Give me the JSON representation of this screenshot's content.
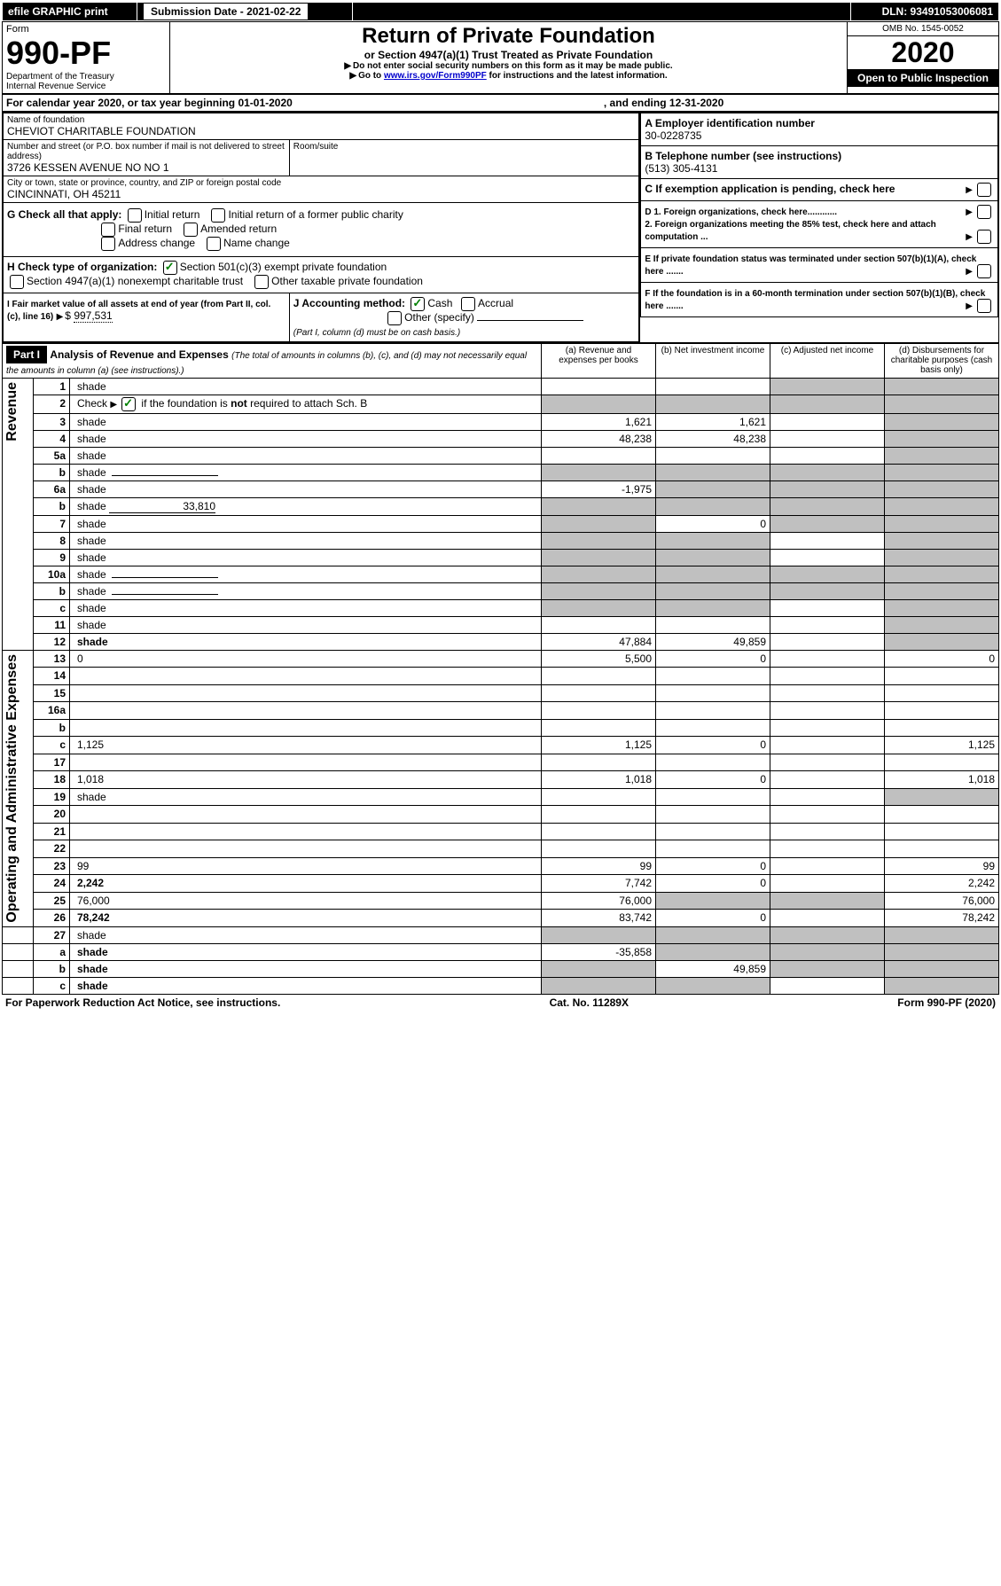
{
  "header_bar": {
    "efile": "efile GRAPHIC print",
    "submission": "Submission Date - 2021-02-22",
    "dln_label": "DLN: 93491053006081"
  },
  "form_box": {
    "form_word": "Form",
    "form_number": "990-PF",
    "dept": "Department of the Treasury",
    "irs": "Internal Revenue Service"
  },
  "title_box": {
    "main": "Return of Private Foundation",
    "sub": "or Section 4947(a)(1) Trust Treated as Private Foundation",
    "warn": "Do not enter social security numbers on this form as it may be made public.",
    "goto_prefix": "Go to ",
    "goto_link": "www.irs.gov/Form990PF",
    "goto_suffix": " for instructions and the latest information."
  },
  "right_box": {
    "omb": "OMB No. 1545-0052",
    "year": "2020",
    "open": "Open to Public Inspection"
  },
  "period": {
    "line": "For calendar year 2020, or tax year beginning 01-01-2020",
    "ending": ", and ending 12-31-2020"
  },
  "foundation": {
    "name_label": "Name of foundation",
    "name": "CHEVIOT CHARITABLE FOUNDATION",
    "addr_label": "Number and street (or P.O. box number if mail is not delivered to street address)",
    "addr": "3726 KESSEN AVENUE NO NO 1",
    "room_label": "Room/suite",
    "city_label": "City or town, state or province, country, and ZIP or foreign postal code",
    "city": "CINCINNATI, OH  45211"
  },
  "right_info": {
    "a": "A Employer identification number",
    "ein": "30-0228735",
    "b": "B Telephone number (see instructions)",
    "phone": "(513) 305-4131",
    "c": "C If exemption application is pending, check here",
    "d1": "D 1. Foreign organizations, check here............",
    "d2": "2. Foreign organizations meeting the 85% test, check here and attach computation ...",
    "e": "E  If private foundation status was terminated under section 507(b)(1)(A), check here .......",
    "f": "F  If the foundation is in a 60-month termination under section 507(b)(1)(B), check here ......."
  },
  "g": {
    "label": "G Check all that apply:",
    "o1": "Initial return",
    "o2": "Initial return of a former public charity",
    "o3": "Final return",
    "o4": "Amended return",
    "o5": "Address change",
    "o6": "Name change"
  },
  "h": {
    "label": "H Check type of organization:",
    "o1": "Section 501(c)(3) exempt private foundation",
    "o2": "Section 4947(a)(1) nonexempt charitable trust",
    "o3": "Other taxable private foundation"
  },
  "i": {
    "label": "I Fair market value of all assets at end of year (from Part II, col. (c), line 16)",
    "arrow": "$",
    "value": "997,531"
  },
  "j": {
    "label": "J Accounting method:",
    "cash": "Cash",
    "accrual": "Accrual",
    "other": "Other (specify)",
    "note": "(Part I, column (d) must be on cash basis.)"
  },
  "part1": {
    "label": "Part I",
    "title": "Analysis of Revenue and Expenses",
    "title_note": "(The total of amounts in columns (b), (c), and (d) may not necessarily equal the amounts in column (a) (see instructions).)",
    "col_a": "(a)   Revenue and expenses per books",
    "col_b": "(b)  Net investment income",
    "col_c": "(c)  Adjusted net income",
    "col_d": "(d)  Disbursements for charitable purposes (cash basis only)"
  },
  "sections": {
    "revenue": "Revenue",
    "opex": "Operating and Administrative Expenses"
  },
  "rows": [
    {
      "n": "1",
      "d": "shade",
      "a": "",
      "b": "",
      "c": "shade"
    },
    {
      "n": "2",
      "d": "shade",
      "a": "shade",
      "b": "shade",
      "c": "shade",
      "special": "checkline"
    },
    {
      "n": "3",
      "d": "shade",
      "a": "1,621",
      "b": "1,621",
      "c": ""
    },
    {
      "n": "4",
      "d": "shade",
      "a": "48,238",
      "b": "48,238",
      "c": ""
    },
    {
      "n": "5a",
      "d": "shade",
      "a": "",
      "b": "",
      "c": ""
    },
    {
      "n": "b",
      "d": "shade",
      "a": "shade",
      "b": "shade",
      "c": "shade",
      "special": "blankline"
    },
    {
      "n": "6a",
      "d": "shade",
      "a": "-1,975",
      "b": "shade",
      "c": "shade"
    },
    {
      "n": "b",
      "d": "shade",
      "a": "shade",
      "b": "shade",
      "c": "shade",
      "special": "blankval",
      "blankval": "33,810"
    },
    {
      "n": "7",
      "d": "shade",
      "a": "shade",
      "b": "0",
      "c": "shade"
    },
    {
      "n": "8",
      "d": "shade",
      "a": "shade",
      "b": "shade",
      "c": ""
    },
    {
      "n": "9",
      "d": "shade",
      "a": "shade",
      "b": "shade",
      "c": ""
    },
    {
      "n": "10a",
      "d": "shade",
      "a": "shade",
      "b": "shade",
      "c": "shade",
      "special": "blankline"
    },
    {
      "n": "b",
      "d": "shade",
      "a": "shade",
      "b": "shade",
      "c": "shade",
      "special": "blankline"
    },
    {
      "n": "c",
      "d": "shade",
      "a": "shade",
      "b": "shade",
      "c": ""
    },
    {
      "n": "11",
      "d": "shade",
      "a": "",
      "b": "",
      "c": ""
    },
    {
      "n": "12",
      "d": "shade",
      "a": "47,884",
      "b": "49,859",
      "c": "",
      "bold": true
    }
  ],
  "rows_ex": [
    {
      "n": "13",
      "d": "0",
      "a": "5,500",
      "b": "0",
      "c": ""
    },
    {
      "n": "14",
      "d": "",
      "a": "",
      "b": "",
      "c": ""
    },
    {
      "n": "15",
      "d": "",
      "a": "",
      "b": "",
      "c": ""
    },
    {
      "n": "16a",
      "d": "",
      "a": "",
      "b": "",
      "c": ""
    },
    {
      "n": "b",
      "d": "",
      "a": "",
      "b": "",
      "c": ""
    },
    {
      "n": "c",
      "d": "1,125",
      "a": "1,125",
      "b": "0",
      "c": ""
    },
    {
      "n": "17",
      "d": "",
      "a": "",
      "b": "",
      "c": ""
    },
    {
      "n": "18",
      "d": "1,018",
      "a": "1,018",
      "b": "0",
      "c": ""
    },
    {
      "n": "19",
      "d": "shade",
      "a": "",
      "b": "",
      "c": ""
    },
    {
      "n": "20",
      "d": "",
      "a": "",
      "b": "",
      "c": ""
    },
    {
      "n": "21",
      "d": "",
      "a": "",
      "b": "",
      "c": ""
    },
    {
      "n": "22",
      "d": "",
      "a": "",
      "b": "",
      "c": ""
    },
    {
      "n": "23",
      "d": "99",
      "a": "99",
      "b": "0",
      "c": ""
    },
    {
      "n": "24",
      "d": "2,242",
      "a": "7,742",
      "b": "0",
      "c": "",
      "bold": true
    },
    {
      "n": "25",
      "d": "76,000",
      "a": "76,000",
      "b": "shade",
      "c": "shade"
    },
    {
      "n": "26",
      "d": "78,242",
      "a": "83,742",
      "b": "0",
      "c": "",
      "bold": true
    }
  ],
  "rows_bottom": [
    {
      "n": "27",
      "d": "shade",
      "a": "shade",
      "b": "shade",
      "c": "shade"
    },
    {
      "n": "a",
      "d": "shade",
      "a": "-35,858",
      "b": "shade",
      "c": "shade",
      "bold": true
    },
    {
      "n": "b",
      "d": "shade",
      "a": "shade",
      "b": "49,859",
      "c": "shade",
      "bold": true
    },
    {
      "n": "c",
      "d": "shade",
      "a": "shade",
      "b": "shade",
      "c": "",
      "bold": true
    }
  ],
  "footer": {
    "left": "For Paperwork Reduction Act Notice, see instructions.",
    "mid": "Cat. No. 11289X",
    "right": "Form 990-PF (2020)"
  }
}
